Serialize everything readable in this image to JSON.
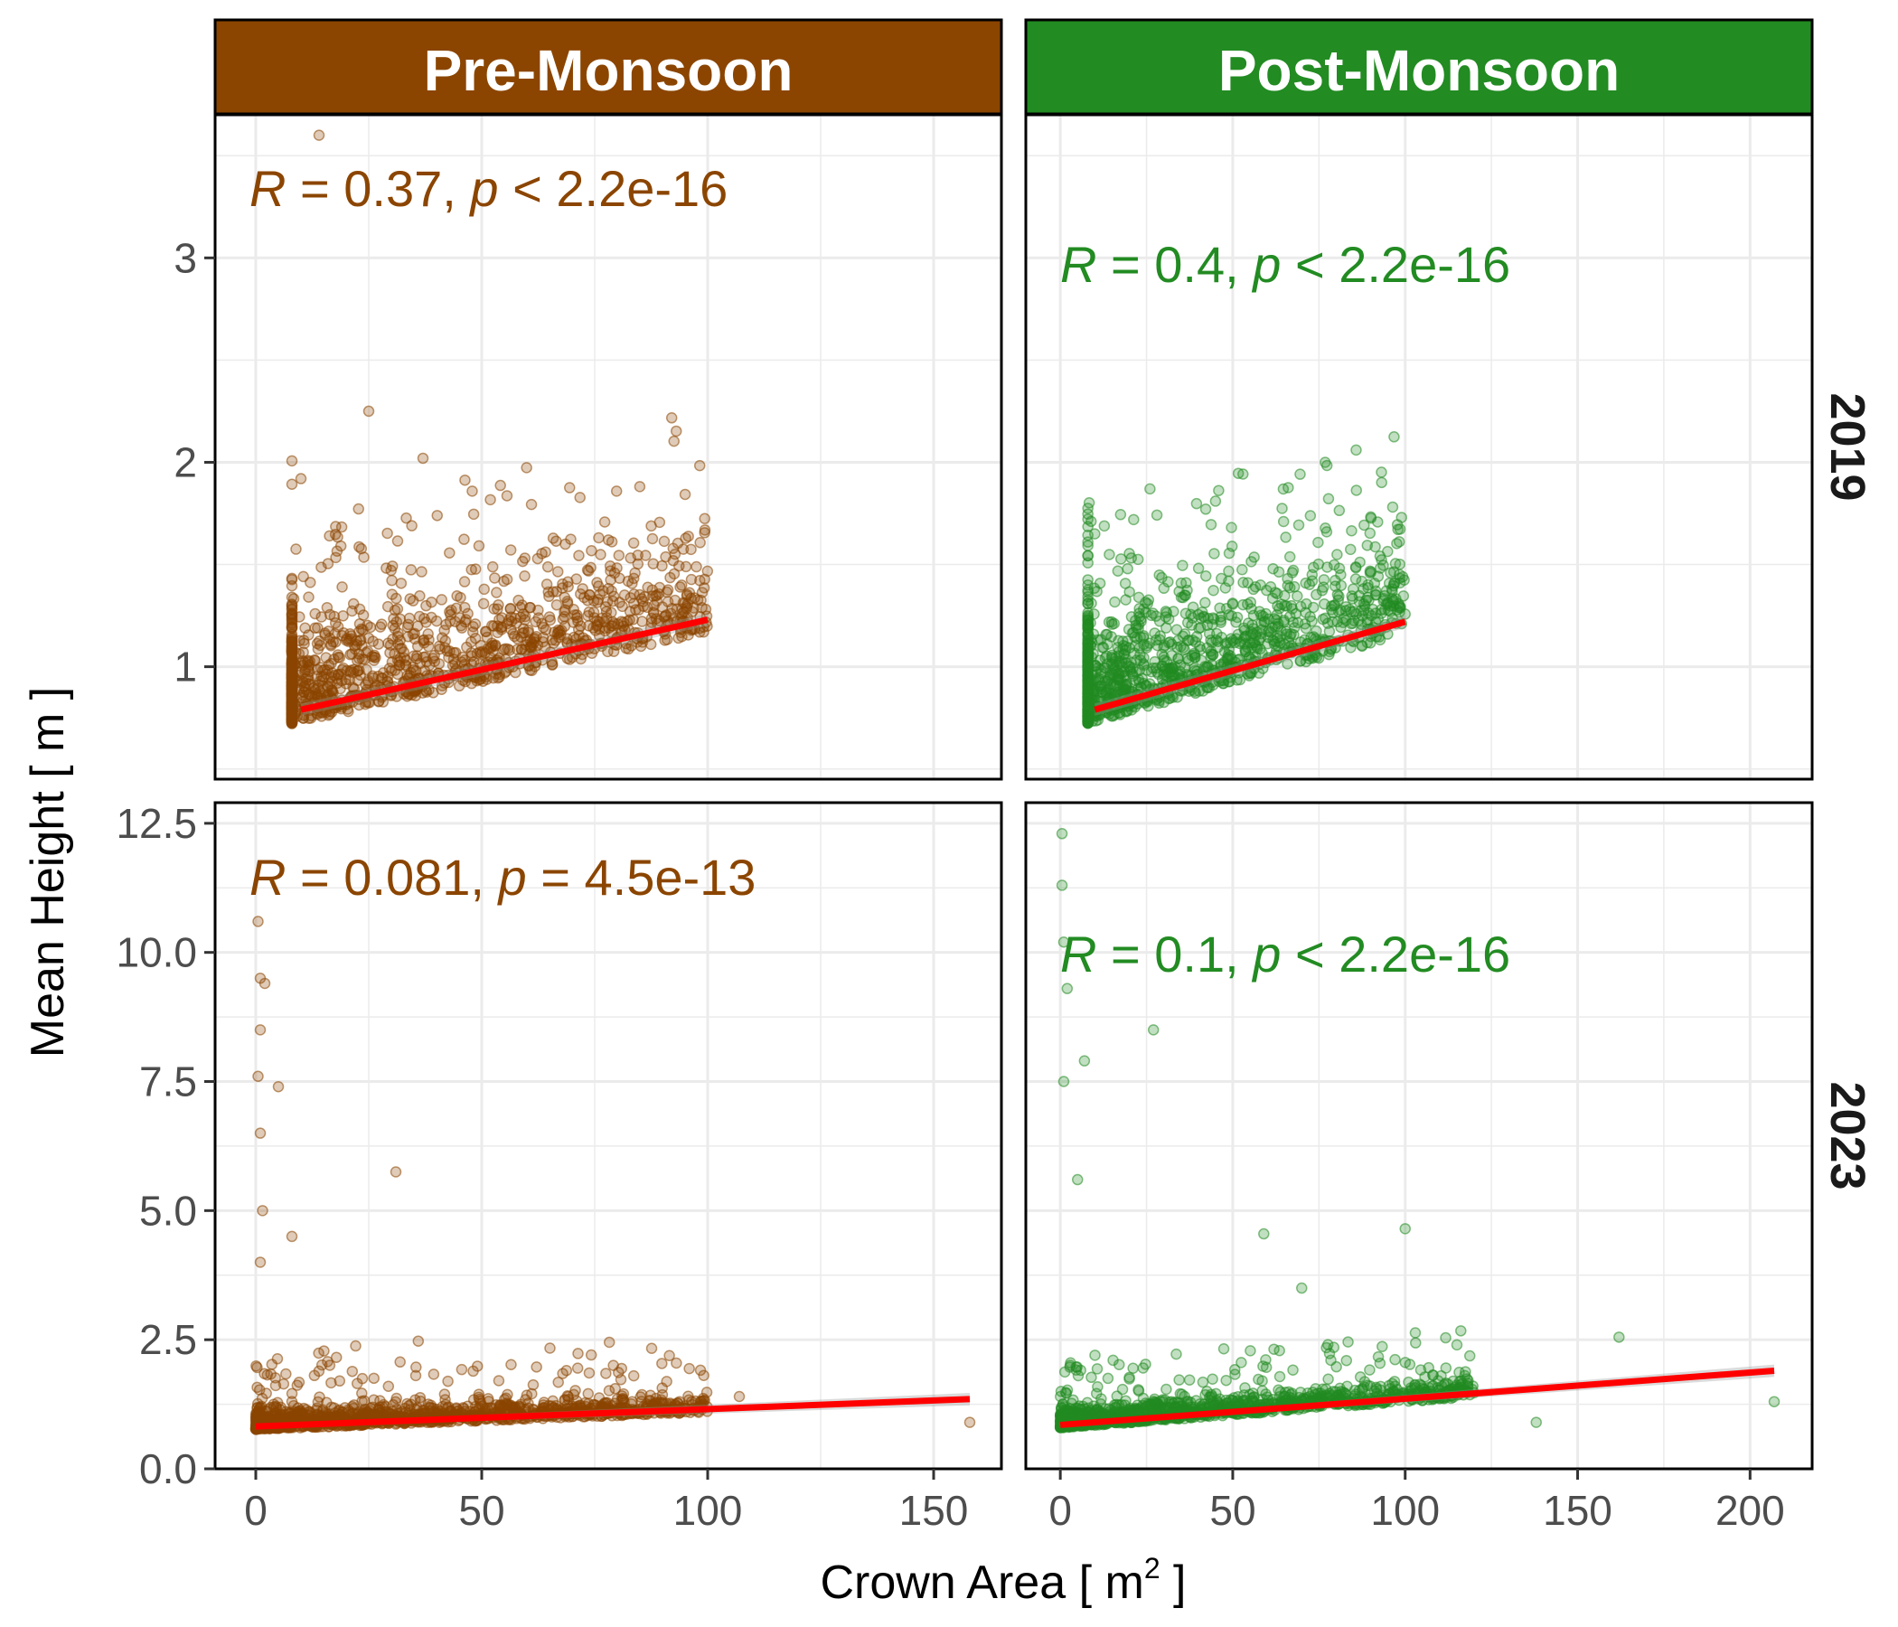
{
  "chart_data": {
    "type": "scatter",
    "facet_columns": [
      {
        "label": "Pre-Monsoon",
        "strip_color": "#8B4500",
        "point_color": "#8B4500"
      },
      {
        "label": "Post-Monsoon",
        "strip_color": "#228B22",
        "point_color": "#228B22"
      }
    ],
    "facet_rows": [
      {
        "label": "2019",
        "ylim": [
          0.45,
          3.7
        ],
        "yticks": [
          1,
          2,
          3
        ],
        "ytick_labels": [
          "1",
          "2",
          "3"
        ]
      },
      {
        "label": "2023",
        "ylim": [
          0,
          12.9
        ],
        "yticks": [
          0,
          2.5,
          5,
          7.5,
          10,
          12.5
        ],
        "ytick_labels": [
          "0.0",
          "2.5",
          "5.0",
          "7.5",
          "10.0",
          "12.5"
        ]
      }
    ],
    "xlabel": "Crown Area [ m",
    "xlabel_superscript": "2",
    "xlabel_suffix": " ]",
    "ylabel": "Mean Height [ m ]",
    "panels": [
      {
        "column": "Pre-Monsoon",
        "row": "2019",
        "xlim": [
          -9,
          165
        ],
        "xticks": [
          0,
          50,
          100,
          150
        ],
        "xtick_labels": [
          "0",
          "50",
          "100",
          "150"
        ],
        "annotation": {
          "r_label": "R",
          "r_text": " = 0.37, ",
          "p_label": "p",
          "p_text": " < 2.2e-16"
        },
        "fit_line": {
          "x": [
            10,
            100
          ],
          "y": [
            0.79,
            1.23
          ]
        },
        "point_cloud": {
          "x_max": 100,
          "y_min": 0.6,
          "y_center": 0.9,
          "outliers": [
            {
              "x": 14,
              "y": 3.6
            },
            {
              "x": 25,
              "y": 2.25
            },
            {
              "x": 37,
              "y": 2.02
            },
            {
              "x": 10,
              "y": 1.92
            }
          ]
        }
      },
      {
        "column": "Post-Monsoon",
        "row": "2019",
        "xlim": [
          -10,
          218
        ],
        "xticks": [
          0,
          50,
          100,
          150,
          200
        ],
        "xtick_labels": [
          "0",
          "50",
          "100",
          "150",
          "200"
        ],
        "annotation": {
          "r_label": "R",
          "r_text": " = 0.4, ",
          "p_label": "p",
          "p_text": " < 2.2e-16"
        },
        "fit_line": {
          "x": [
            10,
            100
          ],
          "y": [
            0.79,
            1.22
          ]
        },
        "point_cloud": {
          "x_max": 100,
          "y_min": 0.6,
          "y_center": 0.9,
          "outliers": [
            {
              "x": 26,
              "y": 1.87
            },
            {
              "x": 45,
              "y": 1.81
            },
            {
              "x": 10,
              "y": 1.65
            }
          ]
        }
      },
      {
        "column": "Pre-Monsoon",
        "row": "2023",
        "xlim": [
          -9,
          165
        ],
        "xticks": [
          0,
          50,
          100,
          150
        ],
        "xtick_labels": [
          "0",
          "50",
          "100",
          "150"
        ],
        "annotation": {
          "r_label": "R",
          "r_text": " = 0.081, ",
          "p_label": "p",
          "p_text": " = 4.5e-13"
        },
        "fit_line": {
          "x": [
            0,
            158
          ],
          "y": [
            0.82,
            1.35
          ]
        },
        "point_cloud": {
          "x_max": 100,
          "y_min": 0.6,
          "y_center": 0.9,
          "outliers": [
            {
              "x": 0.5,
              "y": 10.6
            },
            {
              "x": 1,
              "y": 9.5
            },
            {
              "x": 2,
              "y": 9.4
            },
            {
              "x": 1,
              "y": 8.5
            },
            {
              "x": 0.5,
              "y": 7.6
            },
            {
              "x": 5,
              "y": 7.4
            },
            {
              "x": 1,
              "y": 6.5
            },
            {
              "x": 1.5,
              "y": 5.0
            },
            {
              "x": 1,
              "y": 4.0
            },
            {
              "x": 8,
              "y": 4.5
            },
            {
              "x": 31,
              "y": 5.75
            },
            {
              "x": 158,
              "y": 0.9
            },
            {
              "x": 107,
              "y": 1.4
            }
          ]
        }
      },
      {
        "column": "Post-Monsoon",
        "row": "2023",
        "xlim": [
          -10,
          218
        ],
        "xticks": [
          0,
          50,
          100,
          150,
          200
        ],
        "xtick_labels": [
          "0",
          "50",
          "100",
          "150",
          "200"
        ],
        "annotation": {
          "r_label": "R",
          "r_text": " = 0.1, ",
          "p_label": "p",
          "p_text": " < 2.2e-16"
        },
        "fit_line": {
          "x": [
            0,
            207
          ],
          "y": [
            0.85,
            1.9
          ]
        },
        "point_cloud": {
          "x_max": 120,
          "y_min": 0.6,
          "y_center": 0.95,
          "outliers": [
            {
              "x": 0.5,
              "y": 12.3
            },
            {
              "x": 0.5,
              "y": 11.3
            },
            {
              "x": 1,
              "y": 10.2
            },
            {
              "x": 2,
              "y": 9.3
            },
            {
              "x": 7,
              "y": 7.9
            },
            {
              "x": 1,
              "y": 7.5
            },
            {
              "x": 27,
              "y": 8.5
            },
            {
              "x": 5,
              "y": 5.6
            },
            {
              "x": 100,
              "y": 4.65
            },
            {
              "x": 59,
              "y": 4.55
            },
            {
              "x": 162,
              "y": 2.55
            },
            {
              "x": 207,
              "y": 1.3
            },
            {
              "x": 138,
              "y": 0.9
            },
            {
              "x": 115,
              "y": 2.4
            },
            {
              "x": 70,
              "y": 3.5
            }
          ]
        }
      }
    ],
    "fit_line_color": "#FF0000",
    "grid": true
  }
}
